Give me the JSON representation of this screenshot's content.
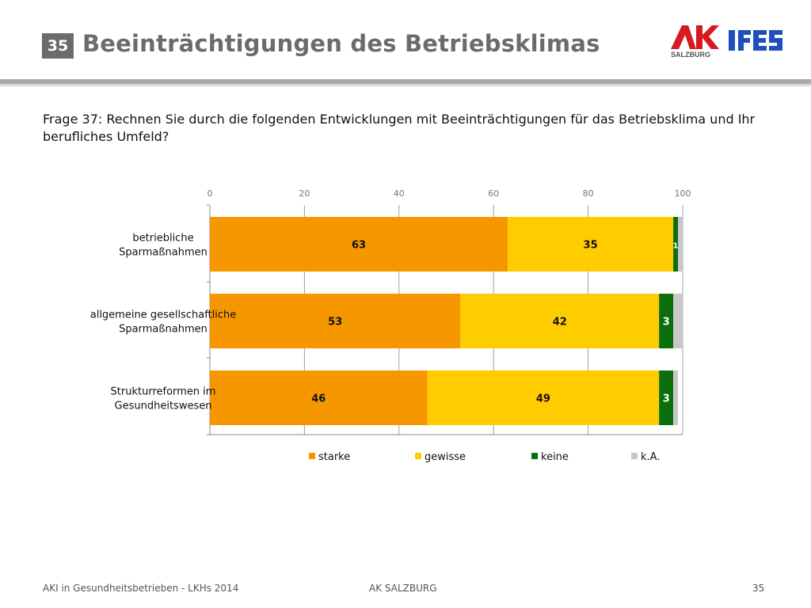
{
  "slide": {
    "number": "35",
    "title": "Beeinträchtigungen des Betriebsklimas",
    "question": "Frage 37: Rechnen Sie durch die folgenden Entwicklungen mit Beeinträchtigungen für das Betriebsklima und Ihr berufliches Umfeld?"
  },
  "logos": {
    "ak_text": "AK",
    "ak_sub": "SALZBURG",
    "ifes_text": "IFES"
  },
  "footer": {
    "left": "AKI in Gesundheitsbetrieben - LKHs 2014",
    "center": "AK SALZBURG",
    "right": "35"
  },
  "colors": {
    "starke": "#f79700",
    "gewisse": "#ffcc00",
    "keine": "#0a6e0a",
    "ka": "#c8c8c8",
    "ak_red": "#d71920",
    "ifes_blue": "#1f4fbf"
  },
  "chart_data": {
    "type": "bar",
    "orientation": "horizontal",
    "stacked": true,
    "xlim": [
      0,
      100
    ],
    "xticks": [
      "0",
      "20",
      "40",
      "60",
      "80",
      "100"
    ],
    "categories": [
      [
        "betriebliche",
        "Sparmaßnahmen"
      ],
      [
        "allgemeine gesellschaftliche",
        "Sparmaßnahmen"
      ],
      [
        "Strukturreformen im",
        "Gesundheitswesen"
      ]
    ],
    "series": [
      {
        "name": "starke",
        "color": "#f79700",
        "values": [
          63,
          53,
          46
        ],
        "labels": [
          "63",
          "53",
          "46"
        ]
      },
      {
        "name": "gewisse",
        "color": "#ffcc00",
        "values": [
          35,
          42,
          49
        ],
        "labels": [
          "35",
          "42",
          "49"
        ]
      },
      {
        "name": "keine",
        "color": "#0a6e0a",
        "values": [
          1,
          3,
          3
        ],
        "labels": [
          "1",
          "3",
          "3"
        ]
      },
      {
        "name": "k.A.",
        "color": "#c8c8c8",
        "values": [
          1,
          2,
          1
        ],
        "labels": [
          "",
          "",
          ""
        ]
      }
    ],
    "legend_position": "bottom",
    "grid": true
  }
}
